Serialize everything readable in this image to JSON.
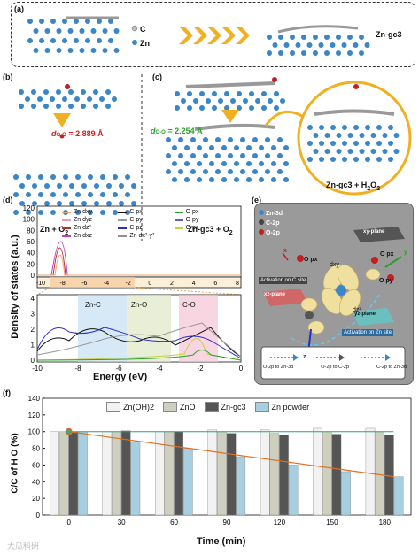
{
  "panels": {
    "a": {
      "label": "(a)",
      "legend_c": "C",
      "legend_zn": "Zn",
      "product": "Zn-gc3"
    },
    "b": {
      "label": "(b)",
      "d_text": "d",
      "d_sub": "O-O",
      "d_value": " = 2.889 Å",
      "caption": "Zn + O",
      "caption_sub": "2"
    },
    "c": {
      "label": "(c)",
      "d_text": "d",
      "d_sub": "O-O",
      "d_value": " = 2.254 Å",
      "caption": "Zn-gc3 + O",
      "caption_sub": "2",
      "zoom_caption": "Zn-gc3 + H",
      "zoom_sub1": "2",
      "zoom_mid": "O",
      "zoom_sub2": "2"
    },
    "d": {
      "label": "(d)",
      "ylabel": "Density of states (a.u.)",
      "xlabel": "Energy (eV)",
      "top_yticks": [
        "0",
        "20",
        "40",
        "60",
        "80",
        "100",
        "120"
      ],
      "xticks": [
        "-10",
        "-8",
        "-6",
        "-4",
        "-2",
        "0"
      ],
      "inset_xticks": [
        "-10",
        "-8",
        "-6",
        "-4",
        "-2",
        "0",
        "2",
        "4",
        "6",
        "8"
      ],
      "bottom_yticks": [
        "0",
        "1",
        "2",
        "3",
        "4"
      ],
      "region_znc": "Zn-C",
      "region_zno": "Zn-O",
      "region_co": "C-O",
      "legend": [
        {
          "name": "Zn dxy",
          "color": "#f0a070"
        },
        {
          "name": "C px",
          "color": "#111111"
        },
        {
          "name": "O px",
          "color": "#2aa02a"
        },
        {
          "name": "Zn dyz",
          "color": "#e8a0b0"
        },
        {
          "name": "C py",
          "color": "#999999"
        },
        {
          "name": "O py",
          "color": "#6060c0"
        },
        {
          "name": "Zn dz²",
          "color": "#b03030"
        },
        {
          "name": "C pz",
          "color": "#3030c0"
        },
        {
          "name": "O pz",
          "color": "#c8d040"
        },
        {
          "name": "Zn dxz",
          "color": "#c040c0"
        },
        {
          "name": "Zn dx²-y²",
          "color": "#909090"
        }
      ]
    },
    "e": {
      "label": "(e)",
      "legend_zn3d": "Zn-3d",
      "legend_c2p": "C-2p",
      "legend_o2p": "O-2p",
      "xy_plane": "xy-plane",
      "xz_plane": "xz-plane",
      "yz_plane": "yz-plane",
      "act_c": "Activation on C site",
      "act_zn": "Activation on Zn site",
      "o_px1": "O px",
      "o_px2": "O px",
      "o_py": "O py",
      "dxy": "dxy",
      "dz2": "dz²",
      "axis_x": "x",
      "axis_y": "y",
      "axis_z": "z",
      "flow": [
        "O-2p  to Zn-3d",
        "O-2p to C-2p",
        "C-2p to Zn-3d"
      ]
    },
    "f": {
      "label": "(f)",
      "ylabel": "C/C  of H O  (%)",
      "xlabel": "Time (min)",
      "yticks": [
        "0",
        "20",
        "40",
        "60",
        "80",
        "100",
        "120",
        "140"
      ],
      "watermark": "大瓜科研"
    }
  },
  "chart_data": {
    "type": "bar",
    "categories": [
      "0",
      "30",
      "60",
      "90",
      "120",
      "150",
      "180"
    ],
    "series": [
      {
        "name": "Zn(OH)2",
        "color": "#f2f2f2",
        "values": [
          100,
          100,
          100,
          102,
          102,
          104,
          104
        ]
      },
      {
        "name": "ZnO",
        "color": "#cfcfc0",
        "values": [
          100,
          100,
          100,
          100,
          98,
          100,
          100
        ]
      },
      {
        "name": "Zn-gc3",
        "color": "#555555",
        "values": [
          100,
          101,
          100,
          98,
          96,
          97,
          96
        ]
      },
      {
        "name": "Zn powder",
        "color": "#a8cfe0",
        "values": [
          100,
          88,
          80,
          70,
          60,
          52,
          46
        ]
      }
    ],
    "xlabel": "Time (min)",
    "ylabel": "C/C0 of H2O2 (%)",
    "ylim": [
      0,
      140
    ]
  }
}
